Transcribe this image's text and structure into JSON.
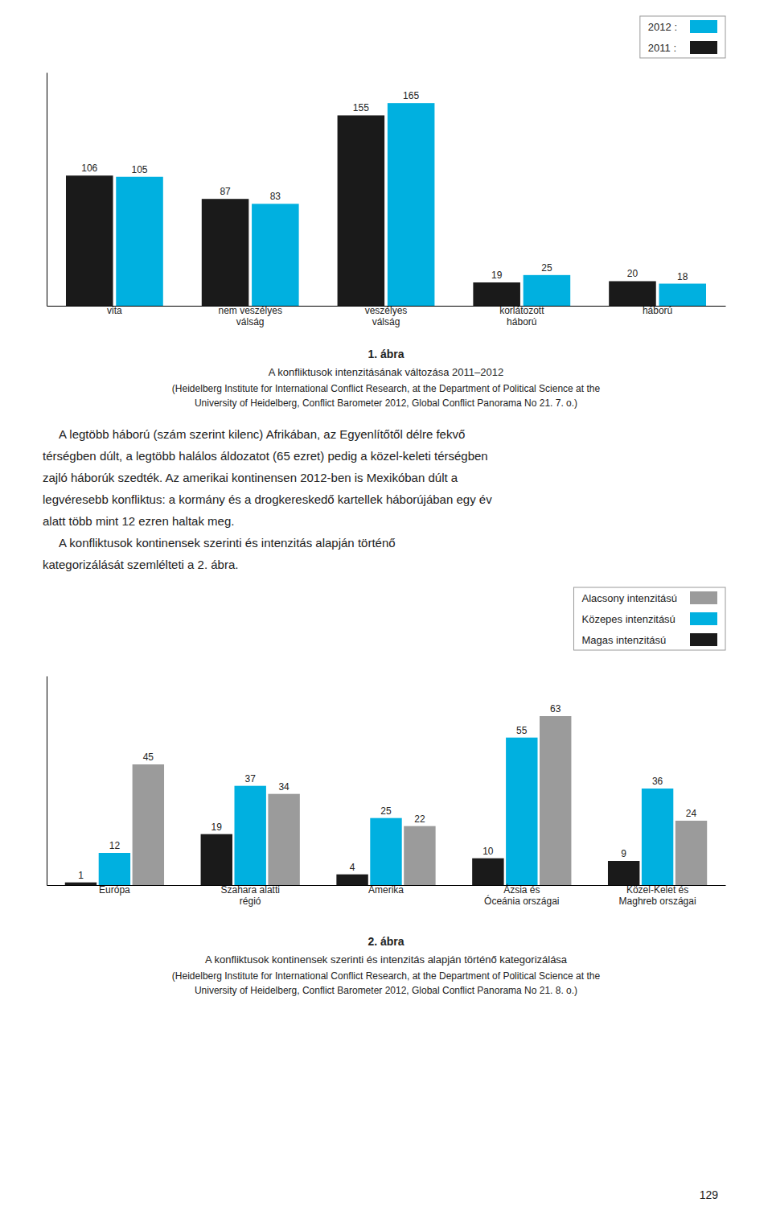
{
  "chart_data": [
    {
      "type": "bar",
      "title": "1. ábra",
      "subtitle": "A konfliktusok intenzitásának változása 2011–2012",
      "annotations": [
        "(Heidelberg Institute for International Conflict Research, at the Department of Political Science at the",
        "University of Heidelberg, Conflict Barometer 2012, Global Conflict Panorama No 21. 7. o.)"
      ],
      "categories": [
        "vita",
        "nem veszélyes\nválság",
        "veszélyes\nválság",
        "korlátozott\nháború",
        "háború"
      ],
      "series": [
        {
          "name": "2011 :",
          "color": "#1a1a1a",
          "values": [
            106,
            87,
            155,
            19,
            20
          ]
        },
        {
          "name": "2012 :",
          "color": "#00b0e0",
          "values": [
            105,
            83,
            165,
            25,
            18
          ]
        }
      ],
      "ylim": [
        0,
        190
      ],
      "grid": false,
      "data_labels": true,
      "tick_labels": "x",
      "legend": "top-right"
    },
    {
      "type": "bar",
      "title": "2. ábra",
      "subtitle": "A konfliktusok kontinensek szerinti és intenzitás alapján történő kategorizálása",
      "annotations": [
        "(Heidelberg Institute for International Conflict Research, at the Department of Political Science at the",
        "University of Heidelberg, Conflict Barometer 2012, Global Conflict Panorama No 21. 8. o.)"
      ],
      "categories": [
        "Európa",
        "Szahara alatti\nrégió",
        "Amerika",
        "Ázsia és\nÓceánia országai",
        "Közel-Kelet és\nMaghreb országai"
      ],
      "series": [
        {
          "name": "Magas intenzitású",
          "color": "#1a1a1a",
          "values": [
            1,
            19,
            4,
            10,
            9
          ]
        },
        {
          "name": "Közepes intenzitású",
          "color": "#00b0e0",
          "values": [
            12,
            37,
            25,
            55,
            36
          ]
        },
        {
          "name": "Alacsony intenzitású",
          "color": "#9b9b9b",
          "values": [
            45,
            34,
            22,
            63,
            24
          ]
        }
      ],
      "ylim": [
        0,
        78
      ],
      "grid": false,
      "data_labels": true,
      "tick_labels": "x",
      "legend": "top-right"
    }
  ],
  "body_lines": [
    "     A legtöbb háború (szám szerint kilenc) Afrikában, az Egyenlítőtől délre fekvő",
    "térségben dúlt, a legtöbb halálos áldozatot (65 ezret) pedig a közel-keleti térségben",
    "zajló háborúk szedték. Az amerikai kontinensen 2012-ben is Mexikóban dúlt a",
    "legvéresebb konfliktus: a kormány és a drogkereskedő kartellek háborújában egy év",
    "alatt több mint 12 ezren haltak meg.",
    "     A konfliktusok kontinensek szerinti és intenzitás alapján történő",
    "kategorizálását szemlélteti a 2. ábra."
  ],
  "page_number": "129"
}
